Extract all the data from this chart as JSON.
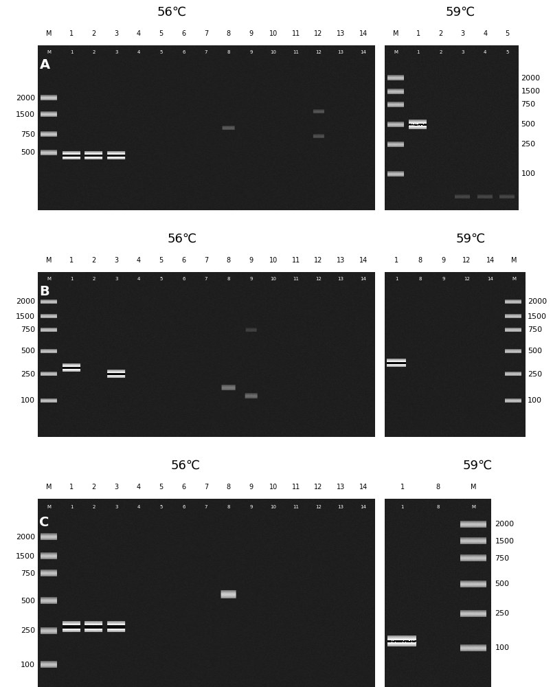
{
  "figure_bg": "#ffffff",
  "gel_bg": "#1c1c1c",
  "gel_bg_light": "#2a2a2a",
  "temp_56": "56℃",
  "temp_59": "59℃",
  "lane_labels_56_A": [
    "M",
    "1",
    "2",
    "3",
    "4",
    "5",
    "6",
    "7",
    "8",
    "9",
    "10",
    "11",
    "12",
    "13",
    "14"
  ],
  "lane_labels_59_A": [
    "M",
    "1",
    "2",
    "3",
    "4",
    "5"
  ],
  "lane_labels_56_B": [
    "M",
    "1",
    "2",
    "3",
    "4",
    "5",
    "6",
    "7",
    "8",
    "9",
    "10",
    "11",
    "12",
    "13",
    "14"
  ],
  "lane_labels_59_B": [
    "1",
    "8",
    "9",
    "12",
    "14",
    "M"
  ],
  "lane_labels_56_C": [
    "M",
    "1",
    "2",
    "3",
    "4",
    "5",
    "6",
    "7",
    "8",
    "9",
    "10",
    "11",
    "12",
    "13",
    "14"
  ],
  "lane_labels_59_C": [
    "1",
    "8",
    "M"
  ],
  "marker_left_A": [
    "2000",
    "1500",
    "750",
    "500"
  ],
  "marker_left_B": [
    "2000",
    "1500",
    "750",
    "500",
    "250",
    "100"
  ],
  "marker_left_C": [
    "2000",
    "1500",
    "750",
    "500",
    "250",
    "100"
  ],
  "marker_right_A": [
    "2000",
    "1500",
    "750",
    "500",
    "250",
    "100"
  ],
  "marker_right_B": [
    "2000",
    "1500",
    "750",
    "500",
    "250",
    "100"
  ],
  "marker_right_C": [
    "2000",
    "1500",
    "750",
    "500",
    "250",
    "100"
  ]
}
